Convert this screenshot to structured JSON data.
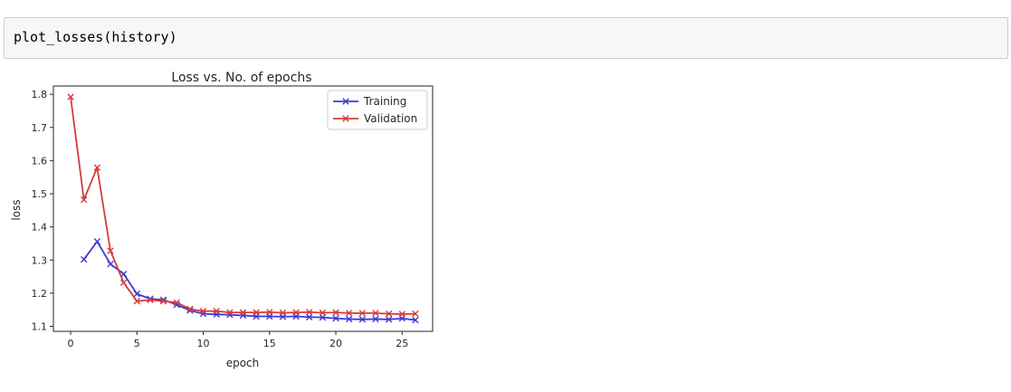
{
  "cell": {
    "code": "plot_losses(history)"
  },
  "chart_data": {
    "type": "line",
    "title": "Loss vs. No. of epochs",
    "xlabel": "epoch",
    "ylabel": "loss",
    "xlim": [
      -1.3,
      27.3
    ],
    "ylim": [
      1.085,
      1.825
    ],
    "xticks": [
      0,
      5,
      10,
      15,
      20,
      25
    ],
    "xtick_labels": [
      "0",
      "5",
      "10",
      "15",
      "20",
      "25"
    ],
    "yticks": [
      1.1,
      1.2,
      1.3,
      1.4,
      1.5,
      1.6,
      1.7,
      1.8
    ],
    "ytick_labels": [
      "1.1",
      "1.2",
      "1.3",
      "1.4",
      "1.5",
      "1.6",
      "1.7",
      "1.8"
    ],
    "grid": false,
    "legend_position": "top-right",
    "marker": "x",
    "series": [
      {
        "name": "Training",
        "color": "#3b3bd6",
        "x": [
          1,
          2,
          3,
          4,
          5,
          6,
          7,
          8,
          9,
          10,
          11,
          12,
          13,
          14,
          15,
          16,
          17,
          18,
          19,
          20,
          21,
          22,
          23,
          24,
          25,
          26
        ],
        "values": [
          1.302,
          1.356,
          1.288,
          1.258,
          1.198,
          1.183,
          1.18,
          1.165,
          1.148,
          1.138,
          1.136,
          1.135,
          1.133,
          1.13,
          1.13,
          1.129,
          1.13,
          1.128,
          1.127,
          1.124,
          1.122,
          1.121,
          1.122,
          1.121,
          1.124,
          1.119
        ]
      },
      {
        "name": "Validation",
        "color": "#d63b3b",
        "x": [
          0,
          1,
          2,
          3,
          4,
          5,
          6,
          7,
          8,
          9,
          10,
          11,
          12,
          13,
          14,
          15,
          16,
          17,
          18,
          19,
          20,
          21,
          22,
          23,
          24,
          25,
          26
        ],
        "values": [
          1.792,
          1.482,
          1.579,
          1.328,
          1.232,
          1.176,
          1.18,
          1.176,
          1.172,
          1.152,
          1.146,
          1.146,
          1.142,
          1.142,
          1.142,
          1.143,
          1.141,
          1.142,
          1.143,
          1.141,
          1.142,
          1.14,
          1.14,
          1.14,
          1.138,
          1.137,
          1.138
        ]
      }
    ]
  }
}
